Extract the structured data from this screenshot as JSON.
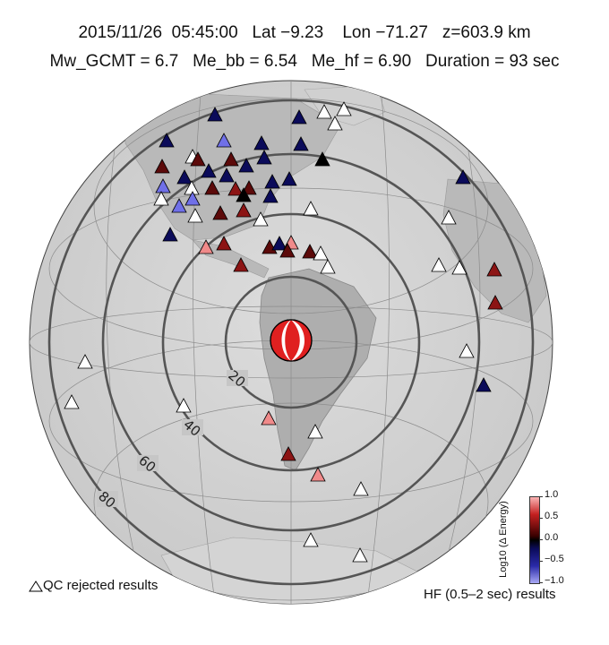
{
  "header": {
    "line1": "2015/11/26  05:45:00   Lat −9.23    Lon −71.27   z=603.9 km",
    "line2": "Mw_GCMT = 6.7   Me_bb = 6.54   Me_hf = 6.90   Duration = 93 sec"
  },
  "map": {
    "projection": "azimuthal-equidistant",
    "center": {
      "lat": -9.23,
      "lon": -71.27
    },
    "distance_rings_deg": [
      20,
      40,
      60,
      80
    ],
    "ring_labels": [
      "20",
      "40",
      "60",
      "80"
    ],
    "mechanism_colors": {
      "compression": "#e02020",
      "dilatation": "#ffffff"
    }
  },
  "legend": {
    "qc_rejected": "QC rejected results",
    "hf_band": "HF (0.5–2 sec) results"
  },
  "colorbar": {
    "label": "Log10 (Δ Energy)",
    "ticks": [
      "1.0",
      "0.5",
      "0.0",
      "−0.5",
      "−1.0"
    ],
    "range": [
      -1.0,
      1.0
    ],
    "colors": {
      "high": "#fbb4b4",
      "mid_high": "#c42020",
      "zero": "#000000",
      "mid_low": "#2a2aa8",
      "low": "#a8a8f5"
    }
  }
}
